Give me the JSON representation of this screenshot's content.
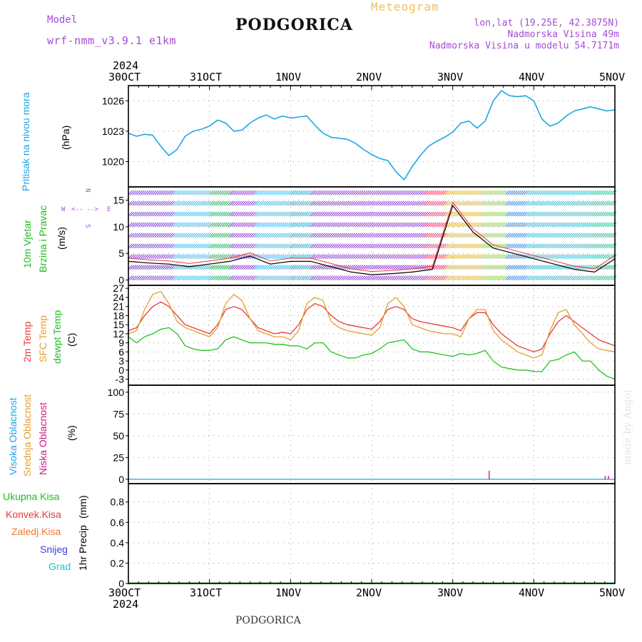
{
  "header": {
    "meteogram": "Meteogram",
    "model_label": "Model",
    "model_name": "wrf-nmm_v3.9.1 e1km",
    "station": "PODGORICA",
    "lonlat": "lon,lat (19.25E, 42.3875N)",
    "elevation": "Nadmorska Visina 49m",
    "model_elevation": "Nadmorska Visina u modelu 54.7171m",
    "footer_station": "PODGORICA",
    "credit": "made by Angel"
  },
  "colors": {
    "pressure": "#1ea6e6",
    "temp2m": "#e83a3a",
    "sfc": "#e0a030",
    "dewpt": "#1fc41f",
    "purple": "#a64bd6",
    "high_cloud": "#1ea6e6",
    "mid_cloud": "#e0a030",
    "low_cloud": "#d01a8a",
    "precip_total": "#22bb22",
    "precip_conv": "#e83a3a",
    "precip_frz": "#f07830",
    "snow": "#4040e0",
    "grad": "#20c0c0"
  },
  "time_axis": {
    "year": "2024",
    "labels": [
      "30OCT",
      "31OCT",
      "1NOV",
      "2NOV",
      "3NOV",
      "4NOV",
      "5NOV"
    ]
  },
  "chart_data": [
    {
      "type": "line",
      "panel": "pressure",
      "ylabel": "Pritisak na nivou mora",
      "units": "(hPa)",
      "ylim": [
        1017.5,
        1027.5
      ],
      "yticks": [
        1020,
        1023,
        1026
      ],
      "grid": true,
      "x_days": [
        0,
        0.1,
        0.2,
        0.3,
        0.4,
        0.5,
        0.6,
        0.7,
        0.8,
        0.9,
        1.0,
        1.1,
        1.2,
        1.3,
        1.4,
        1.5,
        1.6,
        1.7,
        1.8,
        1.9,
        2.0,
        2.1,
        2.2,
        2.3,
        2.4,
        2.5,
        2.6,
        2.7,
        2.8,
        2.9,
        3.0,
        3.1,
        3.2,
        3.3,
        3.4,
        3.5,
        3.6,
        3.7,
        3.8,
        3.9,
        4.0,
        4.1,
        4.2,
        4.3,
        4.4,
        4.5,
        4.6,
        4.7,
        4.8,
        4.9,
        5.0,
        5.1,
        5.2,
        5.3,
        5.4,
        5.5,
        5.6,
        5.7,
        5.8,
        5.9,
        6.0
      ],
      "values": [
        1022.8,
        1022.5,
        1022.7,
        1022.6,
        1021.5,
        1020.6,
        1021.2,
        1022.5,
        1023.0,
        1023.2,
        1023.5,
        1024.1,
        1023.8,
        1023.0,
        1023.1,
        1023.8,
        1024.3,
        1024.6,
        1024.2,
        1024.5,
        1024.3,
        1024.4,
        1024.5,
        1023.6,
        1022.8,
        1022.4,
        1022.3,
        1022.2,
        1021.8,
        1021.2,
        1020.7,
        1020.3,
        1020.1,
        1019.0,
        1018.2,
        1019.5,
        1020.6,
        1021.5,
        1022.0,
        1022.4,
        1022.9,
        1023.8,
        1024.0,
        1023.3,
        1024.0,
        1026.0,
        1027.0,
        1026.5,
        1026.4,
        1026.5,
        1026.0,
        1024.2,
        1023.5,
        1023.8,
        1024.5,
        1025.0,
        1025.2,
        1025.4,
        1025.2,
        1025.0,
        1025.1
      ]
    },
    {
      "type": "line",
      "panel": "wind",
      "ylabel": "10m Vjetar",
      "ylabel2": "Brzina i Pravac",
      "units": "(m/s)",
      "compass": [
        "N",
        "W",
        "E",
        "S"
      ],
      "compass_arrows": "<-- -->",
      "ylim": [
        -1,
        17.5
      ],
      "yticks": [
        0,
        5,
        10,
        15
      ],
      "grid": true,
      "x_days": [
        0,
        0.25,
        0.5,
        0.75,
        1.0,
        1.25,
        1.5,
        1.75,
        2.0,
        2.25,
        2.5,
        2.75,
        3.0,
        3.25,
        3.5,
        3.75,
        4.0,
        4.25,
        4.5,
        4.75,
        5.0,
        5.25,
        5.5,
        5.75,
        6.0
      ],
      "values": [
        3.5,
        3.2,
        3.0,
        2.5,
        3.0,
        3.5,
        4.5,
        3.0,
        3.5,
        3.5,
        2.5,
        1.5,
        1.0,
        1.2,
        1.5,
        2.0,
        14.0,
        9.0,
        6.0,
        5.0,
        4.0,
        3.0,
        2.0,
        1.5,
        4.0
      ]
    },
    {
      "type": "line",
      "panel": "temperature",
      "ylabel": "2m Temp",
      "ylabel2": "SFC Temp",
      "ylabel3": "dewpt Temp",
      "units": "(C)",
      "ylim": [
        -5,
        28
      ],
      "yticks": [
        -3,
        0,
        3,
        6,
        9,
        12,
        15,
        18,
        21,
        24,
        27
      ],
      "grid": true,
      "x_days": [
        0,
        0.1,
        0.2,
        0.3,
        0.4,
        0.5,
        0.6,
        0.7,
        0.8,
        0.9,
        1.0,
        1.1,
        1.2,
        1.3,
        1.4,
        1.5,
        1.6,
        1.7,
        1.8,
        1.9,
        2.0,
        2.1,
        2.2,
        2.3,
        2.4,
        2.5,
        2.6,
        2.7,
        2.8,
        2.9,
        3.0,
        3.1,
        3.2,
        3.3,
        3.4,
        3.5,
        3.6,
        3.7,
        3.8,
        3.9,
        4.0,
        4.1,
        4.2,
        4.3,
        4.4,
        4.5,
        4.6,
        4.7,
        4.8,
        4.9,
        5.0,
        5.1,
        5.2,
        5.3,
        5.4,
        5.5,
        5.6,
        5.7,
        5.8,
        5.9,
        6.0
      ],
      "series": [
        {
          "name": "2m Temp",
          "values": [
            13,
            14,
            18,
            21,
            22.5,
            21,
            18,
            15,
            14,
            13,
            12,
            15,
            20,
            21,
            20,
            17,
            14,
            13,
            12,
            12.5,
            12,
            15,
            20,
            22,
            21,
            18,
            16,
            15,
            14.5,
            14,
            13.5,
            16,
            20,
            21,
            20,
            17,
            16,
            15.5,
            15,
            14.5,
            14,
            13,
            17,
            19,
            19,
            15,
            12,
            10,
            8,
            7,
            6,
            7,
            12,
            16,
            18,
            16,
            14,
            12,
            10,
            9,
            8
          ]
        },
        {
          "name": "SFC Temp",
          "values": [
            12,
            13,
            20,
            25,
            26,
            22,
            16,
            14,
            13,
            12,
            11,
            14,
            22,
            25,
            23,
            17,
            13,
            12,
            11,
            11,
            10,
            13,
            22,
            24,
            23,
            16,
            14,
            13,
            12.5,
            12,
            11.5,
            14,
            22,
            24,
            21,
            15,
            14,
            13,
            12.5,
            12,
            12,
            11,
            17,
            20,
            20,
            13,
            10,
            8,
            6,
            5,
            4,
            5,
            13,
            19,
            20,
            15,
            12,
            9,
            7,
            6.5,
            6
          ]
        },
        {
          "name": "dewpt Temp",
          "values": [
            11,
            9,
            11,
            12,
            13.5,
            14,
            12,
            8,
            7,
            6.5,
            6.5,
            7,
            10,
            11,
            10,
            9,
            9,
            9,
            8.5,
            8.5,
            8,
            8,
            7,
            9,
            9,
            6,
            5,
            4,
            4,
            5,
            5.5,
            7,
            9,
            9.5,
            10,
            7,
            6,
            6,
            5.5,
            5,
            4.5,
            5.5,
            5,
            5.5,
            6.5,
            3,
            1,
            0.5,
            0,
            0,
            -0.5,
            -0.5,
            3,
            3.5,
            5,
            6,
            3,
            3,
            0,
            -2,
            -3
          ]
        }
      ]
    },
    {
      "type": "bar",
      "panel": "cloud",
      "ylabel": "Visoka Oblacnost",
      "ylabel2": "Srednja Oblacnost",
      "ylabel3": "Niska Oblacnost",
      "units": "(%)",
      "ylim": [
        -5,
        108
      ],
      "yticks": [
        0,
        25,
        50,
        75,
        100
      ],
      "grid": true,
      "series": [
        {
          "name": "Niska Oblacnost",
          "x_days": [
            4.45,
            5.88,
            5.92
          ],
          "values": [
            10,
            4,
            4
          ]
        }
      ]
    },
    {
      "type": "line",
      "panel": "precip",
      "ylabel": "1hr Precip",
      "units": "(mm)",
      "legend": [
        "Ukupna Kisa",
        "Konvek.Kisa",
        "Zaledj.Kisa",
        "Snijeg",
        "Grad"
      ],
      "ylim": [
        0,
        0.98
      ],
      "yticks": [
        0,
        0.2,
        0.4,
        0.6,
        0.8
      ],
      "grid": true,
      "values": []
    }
  ]
}
